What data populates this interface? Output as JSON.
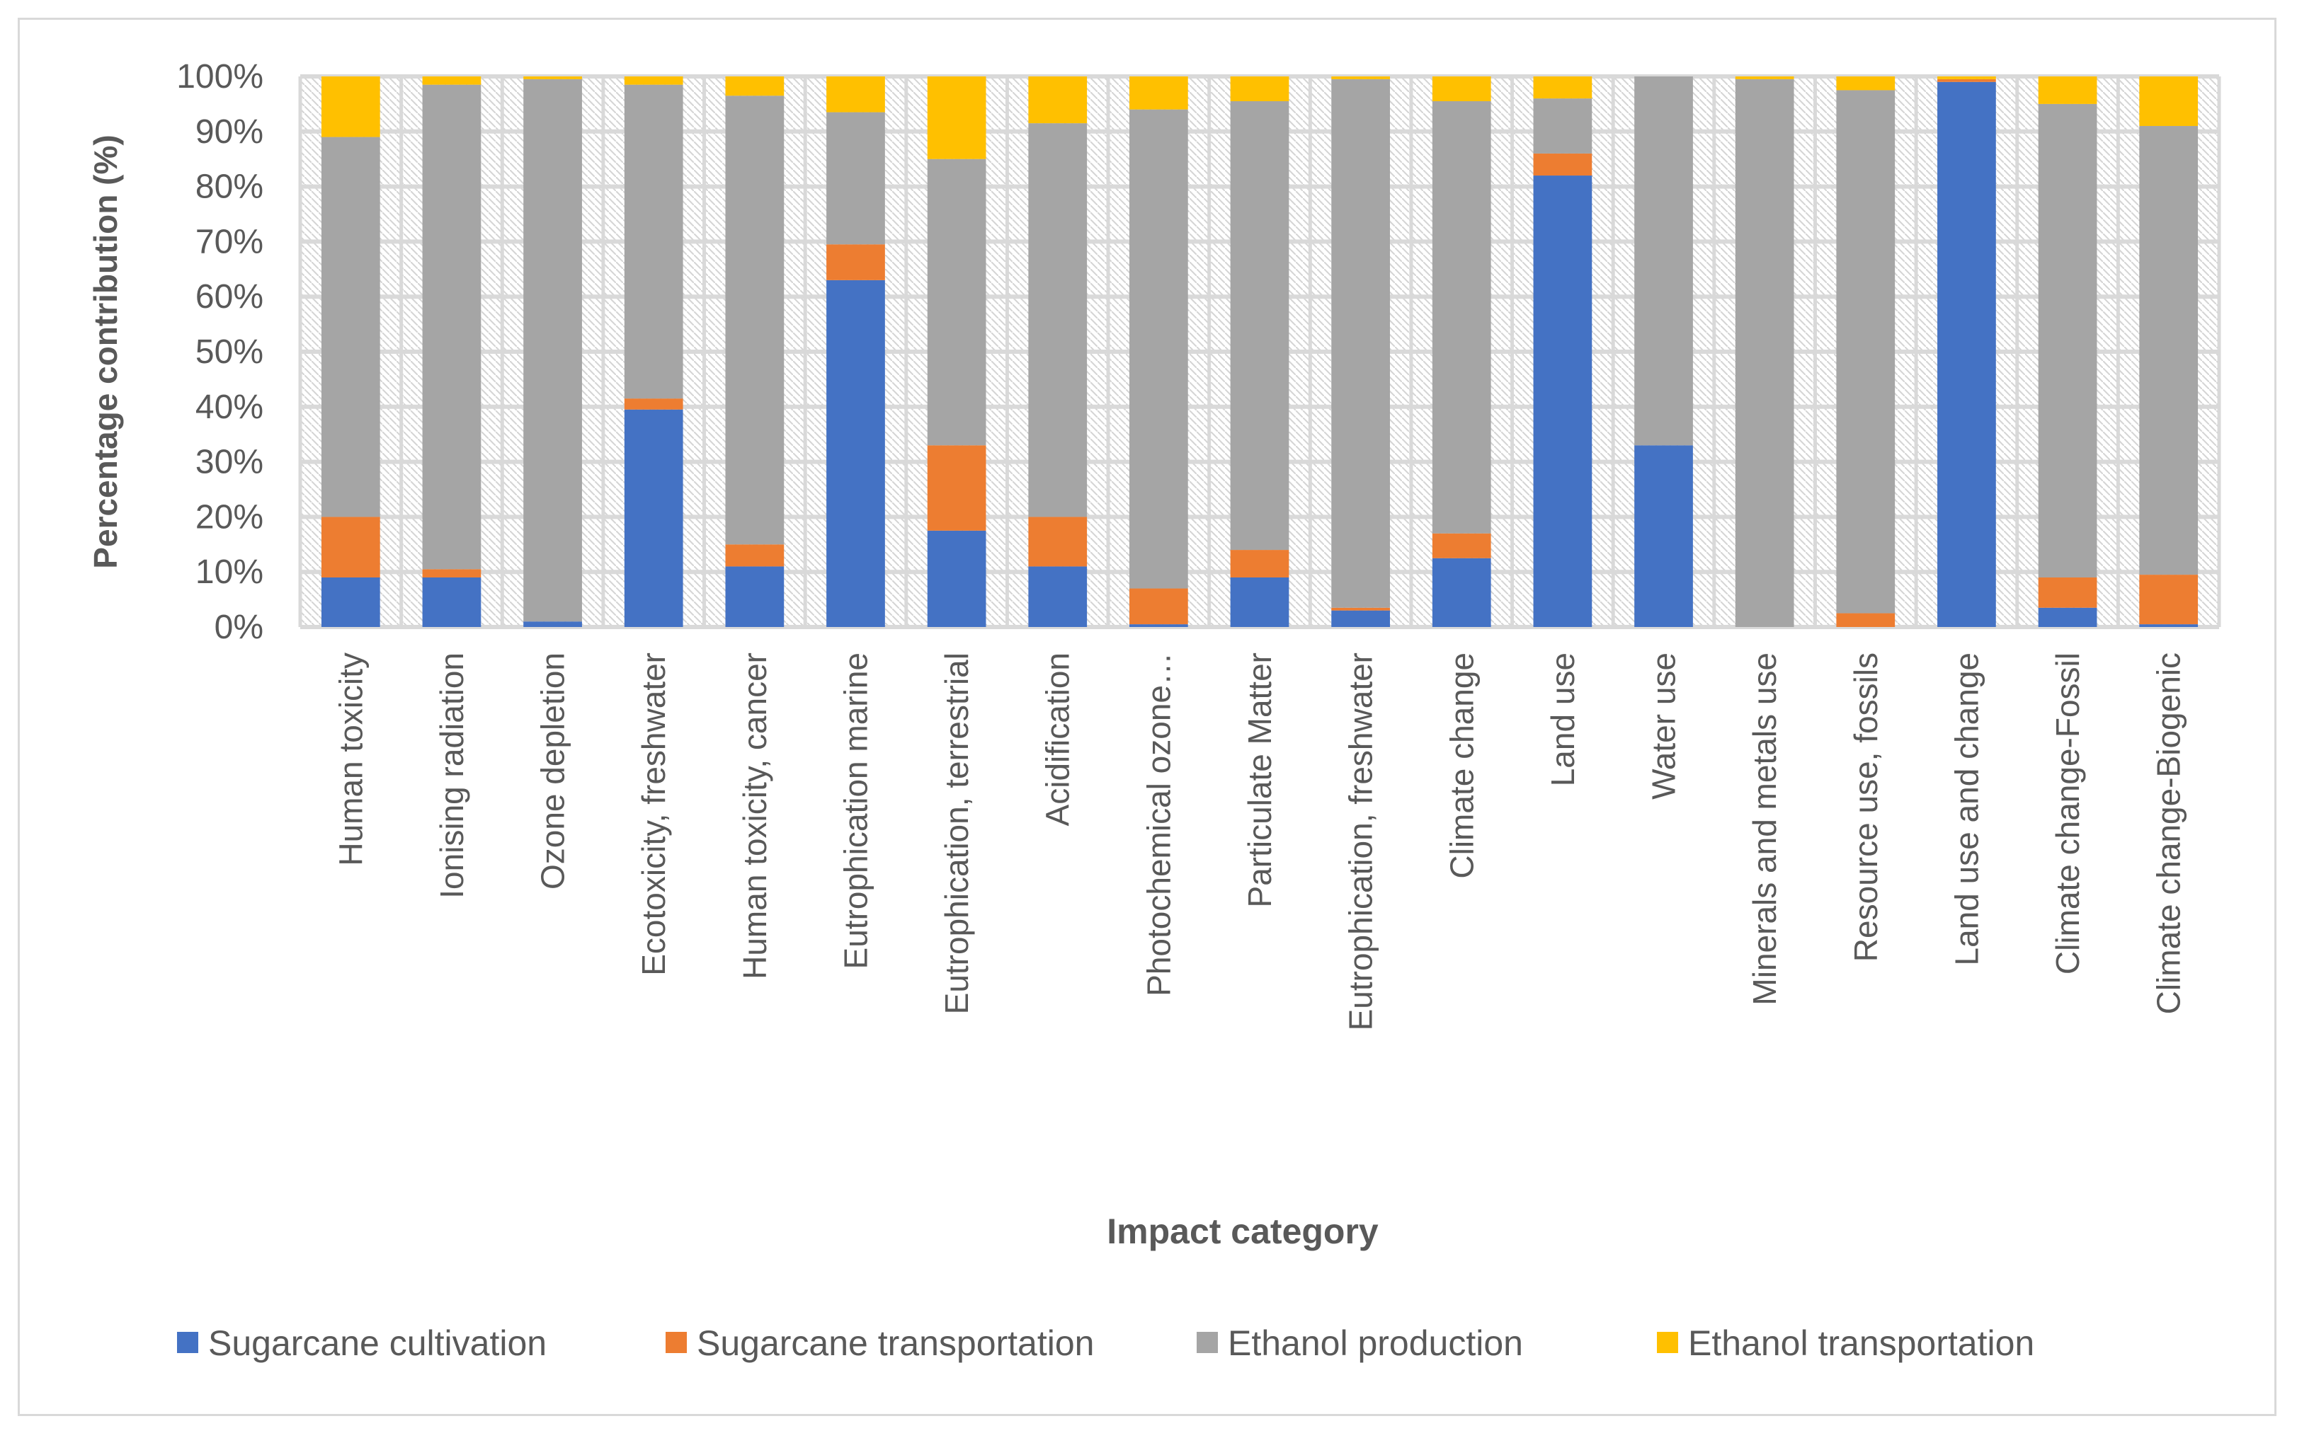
{
  "chart_data": {
    "type": "bar",
    "stacked": true,
    "title": "",
    "xlabel": "Impact category",
    "ylabel": "Percentage contribution (%)",
    "ylim": [
      0,
      100
    ],
    "yticks": [
      "0%",
      "10%",
      "20%",
      "30%",
      "40%",
      "50%",
      "60%",
      "70%",
      "80%",
      "90%",
      "100%"
    ],
    "grid": true,
    "legend_position": "bottom",
    "categories": [
      "Human toxicity",
      "Ionising radiation",
      "Ozone depletion",
      "Ecotoxicity, freshwater",
      "Human toxicity, cancer",
      "Eutrophication marine",
      "Eutrophication, terrestrial",
      "Acidification",
      "Photochemical ozone…",
      "Particulate Matter",
      "Eutrophication, freshwater",
      "Climate change",
      "Land use",
      "Water use",
      "Minerals and metals use",
      "Resource use, fossils",
      "Land use and change",
      "Climate change-Fossil",
      "Climate change-Biogenic"
    ],
    "series": [
      {
        "name": "Sugarcane cultivation",
        "color": "#4472c4",
        "values": [
          9,
          9,
          1,
          39.5,
          11,
          63,
          17.5,
          11,
          0.5,
          9,
          3,
          12.5,
          82,
          33,
          0,
          0,
          99,
          3.5,
          0.5
        ]
      },
      {
        "name": "Sugarcane transportation",
        "color": "#ed7d31",
        "values": [
          11,
          1.5,
          0,
          2,
          4,
          6.5,
          15.5,
          9,
          6.5,
          5,
          0.5,
          4.5,
          4,
          0,
          0,
          2.5,
          0.5,
          5.5,
          9
        ]
      },
      {
        "name": "Ethanol production",
        "color": "#a5a5a5",
        "values": [
          69,
          88,
          98.5,
          57,
          81.5,
          24,
          52,
          71.5,
          87,
          81.5,
          96,
          78.5,
          10,
          67,
          99.5,
          95,
          0,
          86,
          81.5
        ]
      },
      {
        "name": "Ethanol transportation",
        "color": "#ffc000",
        "values": [
          11,
          1.5,
          0.5,
          1.5,
          3.5,
          6.5,
          15,
          8.5,
          6,
          4.5,
          0.5,
          4.5,
          4,
          0,
          0.5,
          2.5,
          0.5,
          5,
          9
        ]
      }
    ]
  }
}
